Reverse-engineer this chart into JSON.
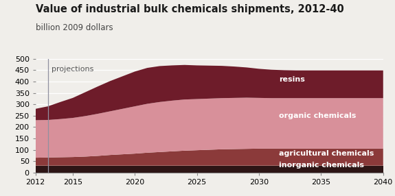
{
  "title": "Value of industrial bulk chemicals shipments, 2012-40",
  "subtitle": "billion 2009 dollars",
  "projection_label": "projections",
  "years": [
    2012,
    2013,
    2014,
    2015,
    2016,
    2017,
    2018,
    2019,
    2020,
    2021,
    2022,
    2023,
    2024,
    2025,
    2026,
    2027,
    2028,
    2029,
    2030,
    2031,
    2032,
    2033,
    2034,
    2035,
    2036,
    2037,
    2038,
    2039,
    2040
  ],
  "inorganic": [
    30,
    30,
    30,
    30,
    30,
    30,
    30,
    30,
    30,
    30,
    30,
    30,
    30,
    30,
    30,
    30,
    30,
    30,
    30,
    30,
    30,
    30,
    30,
    30,
    30,
    30,
    30,
    30,
    30
  ],
  "agricultural": [
    35,
    36,
    37,
    38,
    40,
    43,
    47,
    50,
    53,
    57,
    60,
    63,
    66,
    68,
    70,
    72,
    73,
    74,
    75,
    75,
    75,
    75,
    75,
    75,
    75,
    75,
    75,
    75,
    75
  ],
  "organic": [
    165,
    165,
    168,
    172,
    178,
    185,
    192,
    200,
    208,
    215,
    220,
    223,
    225,
    225,
    225,
    225,
    225,
    225,
    223,
    222,
    222,
    222,
    222,
    222,
    222,
    222,
    222,
    222,
    222
  ],
  "resins": [
    50,
    60,
    75,
    88,
    105,
    120,
    133,
    143,
    153,
    158,
    158,
    155,
    152,
    148,
    145,
    142,
    138,
    133,
    128,
    125,
    123,
    122,
    122,
    122,
    122,
    122,
    122,
    122,
    122
  ],
  "colors": {
    "inorganic": "#2d1515",
    "agricultural": "#8b3a3a",
    "organic": "#d8909a",
    "resins": "#6e1c2a"
  },
  "labels": {
    "inorganic": "inorganic chemicals",
    "agricultural": "agricultural chemicals",
    "organic": "organic chemicals",
    "resins": "resins"
  },
  "projection_x": 2013,
  "ylim": [
    0,
    500
  ],
  "yticks": [
    0,
    50,
    100,
    150,
    200,
    250,
    300,
    350,
    400,
    450,
    500
  ],
  "xticks": [
    2012,
    2015,
    2020,
    2025,
    2030,
    2035,
    2040
  ],
  "background_color": "#f0eeea",
  "grid_color": "#ffffff",
  "title_fontsize": 10.5,
  "subtitle_fontsize": 8.5,
  "label_fontsize": 8,
  "label_color": "white"
}
